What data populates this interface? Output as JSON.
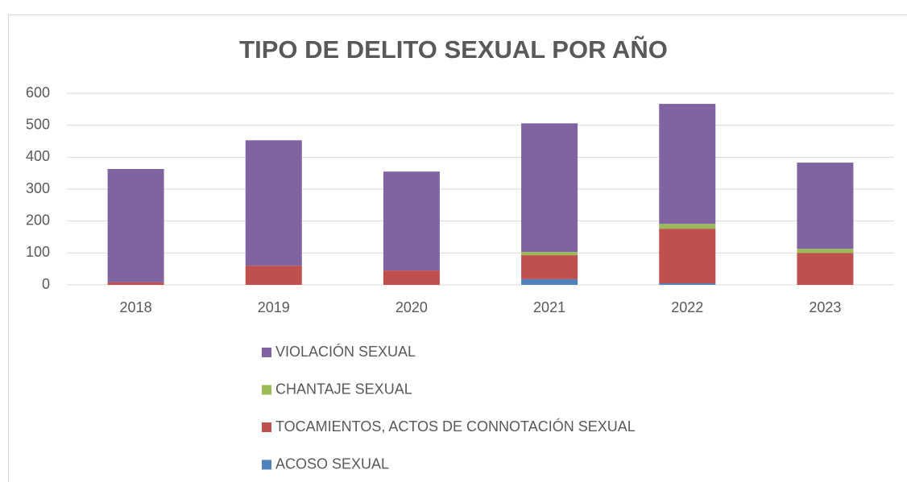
{
  "chart_data": {
    "type": "stacked_bar",
    "title": "TIPO DE DELITO SEXUAL  POR AÑO",
    "categories": [
      "2018",
      "2019",
      "2020",
      "2021",
      "2022",
      "2023"
    ],
    "series": [
      {
        "name": "ACOSO SEXUAL",
        "color": "#4f81bd",
        "values": [
          0,
          0,
          0,
          18,
          5,
          0
        ]
      },
      {
        "name": "TOCAMIENTOS, ACTOS DE CONNOTACIÓN SEXUAL",
        "color": "#c0504d",
        "values": [
          8,
          60,
          45,
          75,
          171,
          100
        ]
      },
      {
        "name": "CHANTAJE SEXUAL",
        "color": "#9bbb59",
        "values": [
          0,
          0,
          0,
          10,
          15,
          13
        ]
      },
      {
        "name": "VIOLACIÓN SEXUAL",
        "color": "#8064a2",
        "values": [
          355,
          393,
          310,
          403,
          376,
          270
        ]
      }
    ],
    "ylim": [
      0,
      600
    ],
    "yticks": [
      0,
      100,
      200,
      300,
      400,
      500,
      600
    ],
    "grid": true,
    "legend": "bottom"
  }
}
